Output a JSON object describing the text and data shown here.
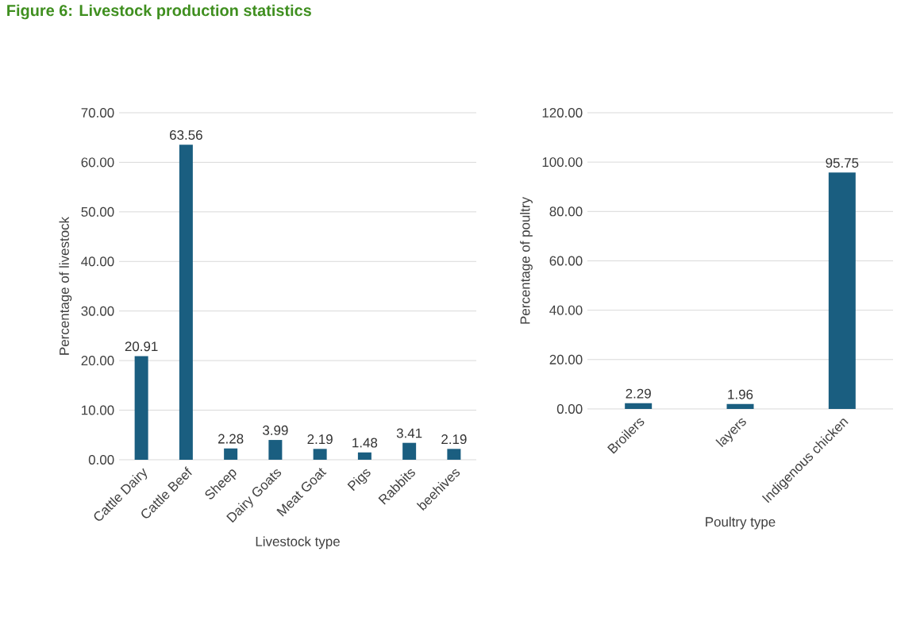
{
  "chart_data": [
    {
      "type": "bar",
      "title": "Figure 6: Livestock production statistics",
      "xlabel": "Livestock type",
      "ylabel": "Percentage of livestock",
      "categories": [
        "Cattle Dairy",
        "Cattle Beef",
        "Sheep",
        "Dairy Goats",
        "Meat Goat",
        "Pigs",
        "Rabbits",
        "beehives"
      ],
      "values": [
        20.91,
        63.56,
        2.28,
        3.99,
        2.19,
        1.48,
        3.41,
        2.19
      ],
      "value_labels": [
        "20.91",
        "63.56",
        "2.28",
        "3.99",
        "2.19",
        "1.48",
        "3.41",
        "2.19"
      ],
      "color": "#1a5e80",
      "ylim": [
        0,
        70
      ],
      "yticks": [
        {
          "value": 0,
          "label": "0.00"
        },
        {
          "value": 10,
          "label": "10.00"
        },
        {
          "value": 20,
          "label": "20.00"
        },
        {
          "value": 30,
          "label": "30.00"
        },
        {
          "value": 40,
          "label": "40.00"
        },
        {
          "value": 50,
          "label": "50.00"
        },
        {
          "value": 60,
          "label": "60.00"
        },
        {
          "value": 70,
          "label": "70.00"
        }
      ],
      "grid": "y"
    },
    {
      "type": "bar",
      "xlabel": "Poultry type",
      "ylabel": "Percentage of poultry",
      "categories": [
        "Broilers",
        "layers",
        "Indigenous chicken"
      ],
      "values": [
        2.29,
        1.96,
        95.75
      ],
      "value_labels": [
        "2.29",
        "1.96",
        "95.75"
      ],
      "color": "#1a5e80",
      "ylim": [
        0,
        120
      ],
      "yticks": [
        {
          "value": 0,
          "label": "0.00"
        },
        {
          "value": 20,
          "label": "20.00"
        },
        {
          "value": 40,
          "label": "40.00"
        },
        {
          "value": 60,
          "label": "60.00"
        },
        {
          "value": 80,
          "label": "80.00"
        },
        {
          "value": 100,
          "label": "100.00"
        },
        {
          "value": 120,
          "label": "120.00"
        }
      ],
      "grid": "y"
    }
  ]
}
